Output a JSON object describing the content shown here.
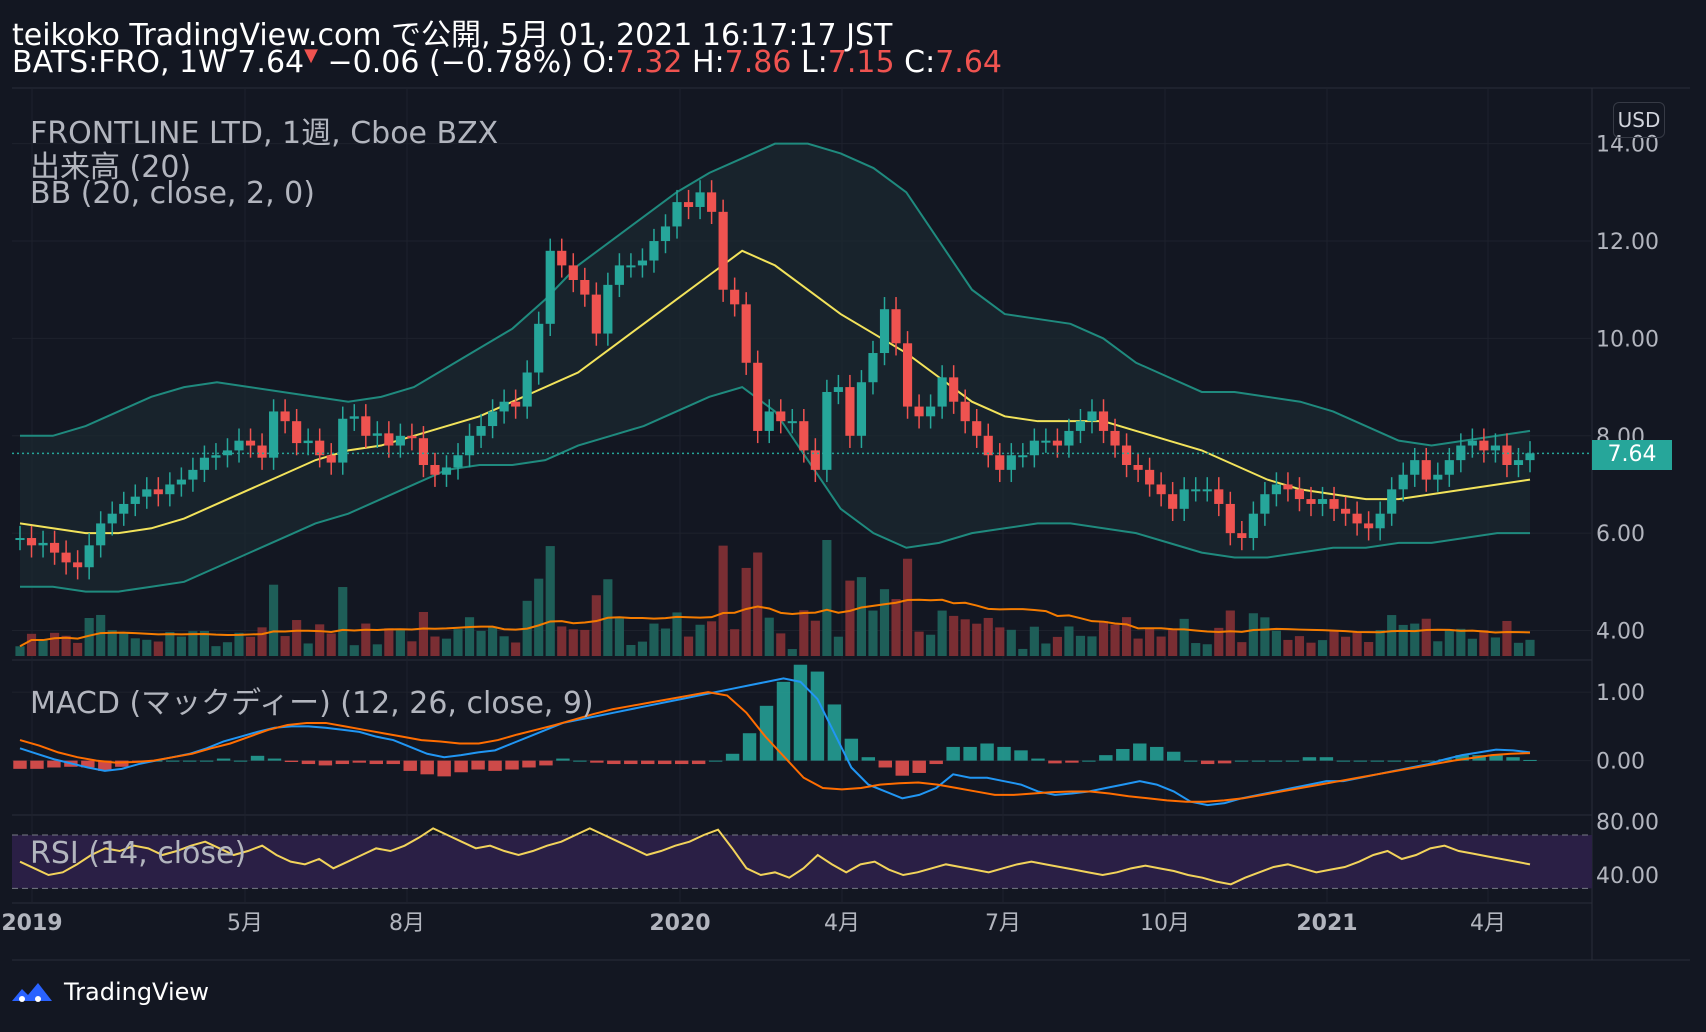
{
  "header": {
    "line1": "teikoko TradingView.com で公開, 5月 01, 2021 16:17:17 JST",
    "symbol": "BATS:FRO, 1W",
    "last": "7.64",
    "change": "−0.06 (−0.78%)",
    "o_label": "O:",
    "o_val": "7.32",
    "h_label": "H:",
    "h_val": "7.86",
    "l_label": "L:",
    "l_val": "7.15",
    "c_label": "C:",
    "c_val": "7.64"
  },
  "legend": {
    "main": "FRONTLINE LTD, 1週, Cboe BZX",
    "volume": "出来高 (20)",
    "bb": "BB (20, close, 2, 0)",
    "macd": "MACD (マックディー) (12, 26, close, 9)",
    "rsi": "RSI (14, close)"
  },
  "axis": {
    "currency": "USD",
    "price_ticks": [
      "14.00",
      "12.00",
      "10.00",
      "8.00",
      "6.00",
      "4.00"
    ],
    "macd_ticks": [
      "1.00",
      "0.00"
    ],
    "rsi_ticks": [
      "80.00",
      "40.00"
    ],
    "x_ticks": [
      "2019",
      "5月",
      "8月",
      "2020",
      "4月",
      "7月",
      "10月",
      "2021",
      "4月"
    ],
    "last_price_tag": "7.64"
  },
  "footer": {
    "brand": "TradingView"
  },
  "colors": {
    "up": "#26a69a",
    "down": "#ef5350",
    "bb_mid": "#f2e35b",
    "bb_band": "#1f8a7e",
    "vol_ma": "#f57c00",
    "macd": "#2196f3",
    "signal": "#ff6d00",
    "rsi": "#f2d35b",
    "rsi_bg": "#2a1f45",
    "background": "#131722"
  },
  "chart_data": {
    "type": "candlestick",
    "symbol": "BATS:FRO",
    "interval": "1W",
    "ylim_price": [
      3.6,
      15.0
    ],
    "close_series": [
      5.9,
      5.75,
      5.8,
      5.6,
      5.4,
      5.3,
      5.75,
      6.2,
      6.4,
      6.6,
      6.75,
      6.9,
      6.8,
      7.0,
      7.1,
      7.3,
      7.55,
      7.6,
      7.7,
      7.9,
      7.8,
      7.55,
      8.5,
      8.3,
      7.85,
      7.9,
      7.6,
      7.45,
      8.35,
      8.4,
      8.0,
      8.05,
      7.8,
      8.0,
      7.95,
      7.4,
      7.2,
      7.35,
      7.6,
      8.0,
      8.2,
      8.5,
      8.7,
      8.6,
      9.3,
      10.3,
      11.8,
      11.5,
      11.2,
      10.9,
      10.1,
      11.1,
      11.5,
      11.5,
      11.6,
      12.0,
      12.3,
      12.8,
      12.7,
      13.0,
      12.6,
      11.0,
      10.7,
      9.5,
      8.1,
      8.5,
      8.3,
      8.3,
      7.7,
      7.3,
      8.9,
      9.0,
      8.0,
      9.1,
      9.7,
      10.6,
      9.9,
      8.6,
      8.4,
      8.6,
      9.2,
      8.7,
      8.3,
      8.0,
      7.6,
      7.3,
      7.6,
      7.6,
      7.9,
      7.9,
      7.8,
      8.1,
      8.3,
      8.5,
      8.1,
      7.8,
      7.4,
      7.3,
      7.0,
      6.8,
      6.5,
      6.9,
      6.9,
      6.9,
      6.6,
      6.0,
      5.9,
      6.4,
      6.8,
      7.0,
      6.9,
      6.7,
      6.6,
      6.7,
      6.5,
      6.4,
      6.2,
      6.1,
      6.4,
      6.9,
      7.2,
      7.5,
      7.1,
      7.2,
      7.5,
      7.8,
      7.9,
      7.7,
      7.8,
      7.4,
      7.5,
      7.64
    ],
    "macd_series": [
      0.18,
      0.1,
      0.02,
      -0.04,
      -0.1,
      -0.15,
      -0.12,
      -0.05,
      0.0,
      0.05,
      0.1,
      0.18,
      0.28,
      0.35,
      0.42,
      0.48,
      0.5,
      0.5,
      0.48,
      0.45,
      0.42,
      0.35,
      0.3,
      0.2,
      0.1,
      0.05,
      0.08,
      0.12,
      0.15,
      0.25,
      0.35,
      0.45,
      0.55,
      0.6,
      0.65,
      0.7,
      0.75,
      0.8,
      0.85,
      0.9,
      0.95,
      1.0,
      1.05,
      1.1,
      1.15,
      1.2,
      1.15,
      0.9,
      0.4,
      -0.1,
      -0.35,
      -0.45,
      -0.55,
      -0.5,
      -0.4,
      -0.2,
      -0.25,
      -0.25,
      -0.3,
      -0.35,
      -0.45,
      -0.5,
      -0.48,
      -0.45,
      -0.4,
      -0.35,
      -0.3,
      -0.35,
      -0.45,
      -0.6,
      -0.65,
      -0.62,
      -0.55,
      -0.5,
      -0.45,
      -0.4,
      -0.35,
      -0.3,
      -0.3,
      -0.25,
      -0.2,
      -0.15,
      -0.1,
      -0.05,
      0.02,
      0.08,
      0.12,
      0.16,
      0.15,
      0.12
    ],
    "signal_series": [
      0.3,
      0.22,
      0.12,
      0.05,
      0.0,
      -0.03,
      -0.02,
      0.0,
      0.05,
      0.1,
      0.18,
      0.25,
      0.35,
      0.45,
      0.52,
      0.55,
      0.55,
      0.5,
      0.45,
      0.4,
      0.35,
      0.3,
      0.28,
      0.25,
      0.25,
      0.3,
      0.38,
      0.45,
      0.52,
      0.6,
      0.68,
      0.75,
      0.8,
      0.85,
      0.9,
      0.95,
      1.0,
      0.95,
      0.7,
      0.35,
      0.05,
      -0.25,
      -0.4,
      -0.42,
      -0.4,
      -0.35,
      -0.33,
      -0.32,
      -0.35,
      -0.4,
      -0.45,
      -0.5,
      -0.5,
      -0.48,
      -0.46,
      -0.45,
      -0.45,
      -0.48,
      -0.52,
      -0.55,
      -0.58,
      -0.6,
      -0.6,
      -0.58,
      -0.55,
      -0.5,
      -0.45,
      -0.4,
      -0.35,
      -0.3,
      -0.25,
      -0.2,
      -0.15,
      -0.1,
      -0.05,
      0.0,
      0.04,
      0.08,
      0.1,
      0.11
    ],
    "rsi_series": [
      50,
      45,
      40,
      42,
      48,
      55,
      60,
      58,
      62,
      60,
      55,
      58,
      62,
      65,
      60,
      55,
      58,
      62,
      55,
      50,
      48,
      52,
      45,
      50,
      55,
      60,
      58,
      62,
      68,
      75,
      70,
      65,
      60,
      62,
      58,
      55,
      58,
      62,
      65,
      70,
      75,
      70,
      65,
      60,
      55,
      58,
      62,
      65,
      70,
      74,
      60,
      45,
      40,
      42,
      38,
      45,
      55,
      48,
      42,
      48,
      50,
      44,
      40,
      42,
      45,
      48,
      46,
      44,
      42,
      45,
      48,
      50,
      48,
      46,
      44,
      42,
      40,
      42,
      45,
      47,
      45,
      43,
      40,
      38,
      35,
      33,
      38,
      42,
      46,
      48,
      45,
      42,
      44,
      46,
      50,
      55,
      58,
      52,
      55,
      60,
      62,
      58,
      56,
      54,
      52,
      50,
      48
    ],
    "bb_upper": [
      8.0,
      8.0,
      8.2,
      8.5,
      8.8,
      9.0,
      9.1,
      9.0,
      8.9,
      8.8,
      8.7,
      8.8,
      9.0,
      9.4,
      9.8,
      10.2,
      10.8,
      11.5,
      12.0,
      12.5,
      13.0,
      13.4,
      13.7,
      14.0,
      14.0,
      13.8,
      13.5,
      13.0,
      12.0,
      11.0,
      10.5,
      10.4,
      10.3,
      10.0,
      9.5,
      9.2,
      8.9,
      8.9,
      8.8,
      8.7,
      8.5,
      8.2,
      7.9,
      7.8,
      7.9,
      8.0,
      8.1
    ],
    "bb_lower": [
      4.9,
      4.9,
      4.8,
      4.8,
      4.9,
      5.0,
      5.3,
      5.6,
      5.9,
      6.2,
      6.4,
      6.7,
      7.0,
      7.3,
      7.4,
      7.4,
      7.5,
      7.8,
      8.0,
      8.2,
      8.5,
      8.8,
      9.0,
      8.5,
      7.5,
      6.5,
      6.0,
      5.7,
      5.8,
      6.0,
      6.1,
      6.2,
      6.2,
      6.1,
      6.0,
      5.8,
      5.6,
      5.5,
      5.5,
      5.6,
      5.7,
      5.7,
      5.8,
      5.8,
      5.9,
      6.0,
      6.0
    ],
    "bb_mid": [
      6.2,
      6.1,
      6.0,
      6.0,
      6.1,
      6.3,
      6.6,
      6.9,
      7.2,
      7.5,
      7.7,
      7.8,
      8.0,
      8.2,
      8.4,
      8.7,
      9.0,
      9.3,
      9.8,
      10.3,
      10.8,
      11.3,
      11.8,
      11.5,
      11.0,
      10.5,
      10.1,
      9.7,
      9.2,
      8.7,
      8.4,
      8.3,
      8.3,
      8.3,
      8.1,
      7.9,
      7.7,
      7.4,
      7.1,
      6.9,
      6.8,
      6.7,
      6.7,
      6.8,
      6.9,
      7.0,
      7.1
    ]
  }
}
